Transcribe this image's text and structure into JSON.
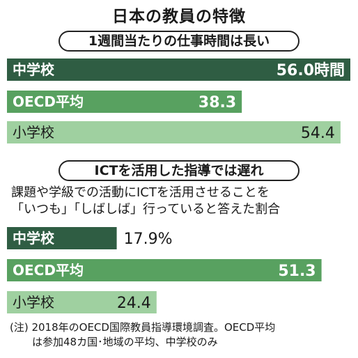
{
  "title": "日本の教員の特徴",
  "colors": {
    "dark": "#2f5d43",
    "mid": "#58a160",
    "light": "#9fd0a0",
    "text_light": "#ffffff",
    "text_dark": "#1a1a1a"
  },
  "chart_data": [
    {
      "type": "bar",
      "title": "1週間当たりの仕事時間は長い",
      "orientation": "horizontal",
      "unit": "時間",
      "xlim": [
        0,
        56.0
      ],
      "categories": [
        "中学校",
        "OECD平均",
        "小学校"
      ],
      "values": [
        56.0,
        38.3,
        54.4
      ],
      "value_labels": [
        "56.0時間",
        "38.3",
        "54.4"
      ],
      "bar_colors": [
        "dark",
        "mid",
        "light"
      ]
    },
    {
      "type": "bar",
      "title": "ICTを活用した指導では遅れ",
      "subtitle_lines": [
        "課題や学級での活動にICTを活用させることを",
        "「いつも」「しばしば」行っていると答えた割合"
      ],
      "orientation": "horizontal",
      "unit": "%",
      "xlim": [
        0,
        56.0
      ],
      "categories": [
        "中学校",
        "OECD平均",
        "小学校"
      ],
      "values": [
        17.9,
        51.3,
        24.4
      ],
      "value_labels": [
        "17.9%",
        "51.3",
        "24.4"
      ],
      "bar_colors": [
        "dark",
        "mid",
        "light"
      ]
    }
  ],
  "note_lines": [
    "(注) 2018年のOECD国際教員指導環境調査。OECD平均",
    "は参加48カ国･地域の平均、中学校のみ"
  ]
}
